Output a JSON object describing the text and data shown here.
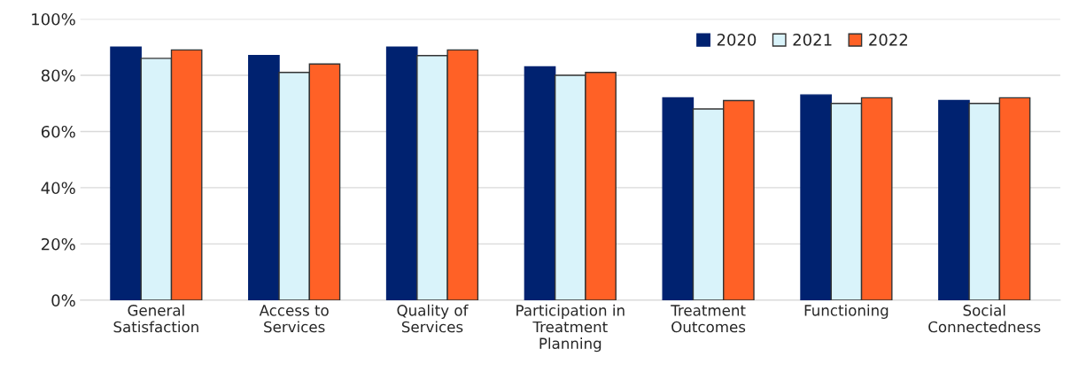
{
  "chart_data": {
    "type": "bar",
    "categories": [
      "General\nSatisfaction",
      "Access to\nServices",
      "Quality of\nServices",
      "Participation in\nTreatment\nPlanning",
      "Treatment\nOutcomes",
      "Functioning",
      "Social\nConnectedness"
    ],
    "series": [
      {
        "name": "2020",
        "color": "#002270",
        "values": [
          90,
          87,
          90,
          83,
          72,
          73,
          71
        ]
      },
      {
        "name": "2021",
        "color": "#d9f3fa",
        "values": [
          86,
          81,
          87,
          80,
          68,
          70,
          70
        ]
      },
      {
        "name": "2022",
        "color": "#ff6126",
        "values": [
          89,
          84,
          89,
          81,
          71,
          72,
          72
        ]
      }
    ],
    "ylim": [
      0,
      100
    ],
    "yticks": [
      {
        "value": 0,
        "label": "0%"
      },
      {
        "value": 20,
        "label": "20%"
      },
      {
        "value": 40,
        "label": "40%"
      },
      {
        "value": 60,
        "label": "60%"
      },
      {
        "value": 80,
        "label": "80%"
      },
      {
        "value": 100,
        "label": "100%"
      }
    ],
    "grid": "y",
    "legend": "top right"
  }
}
